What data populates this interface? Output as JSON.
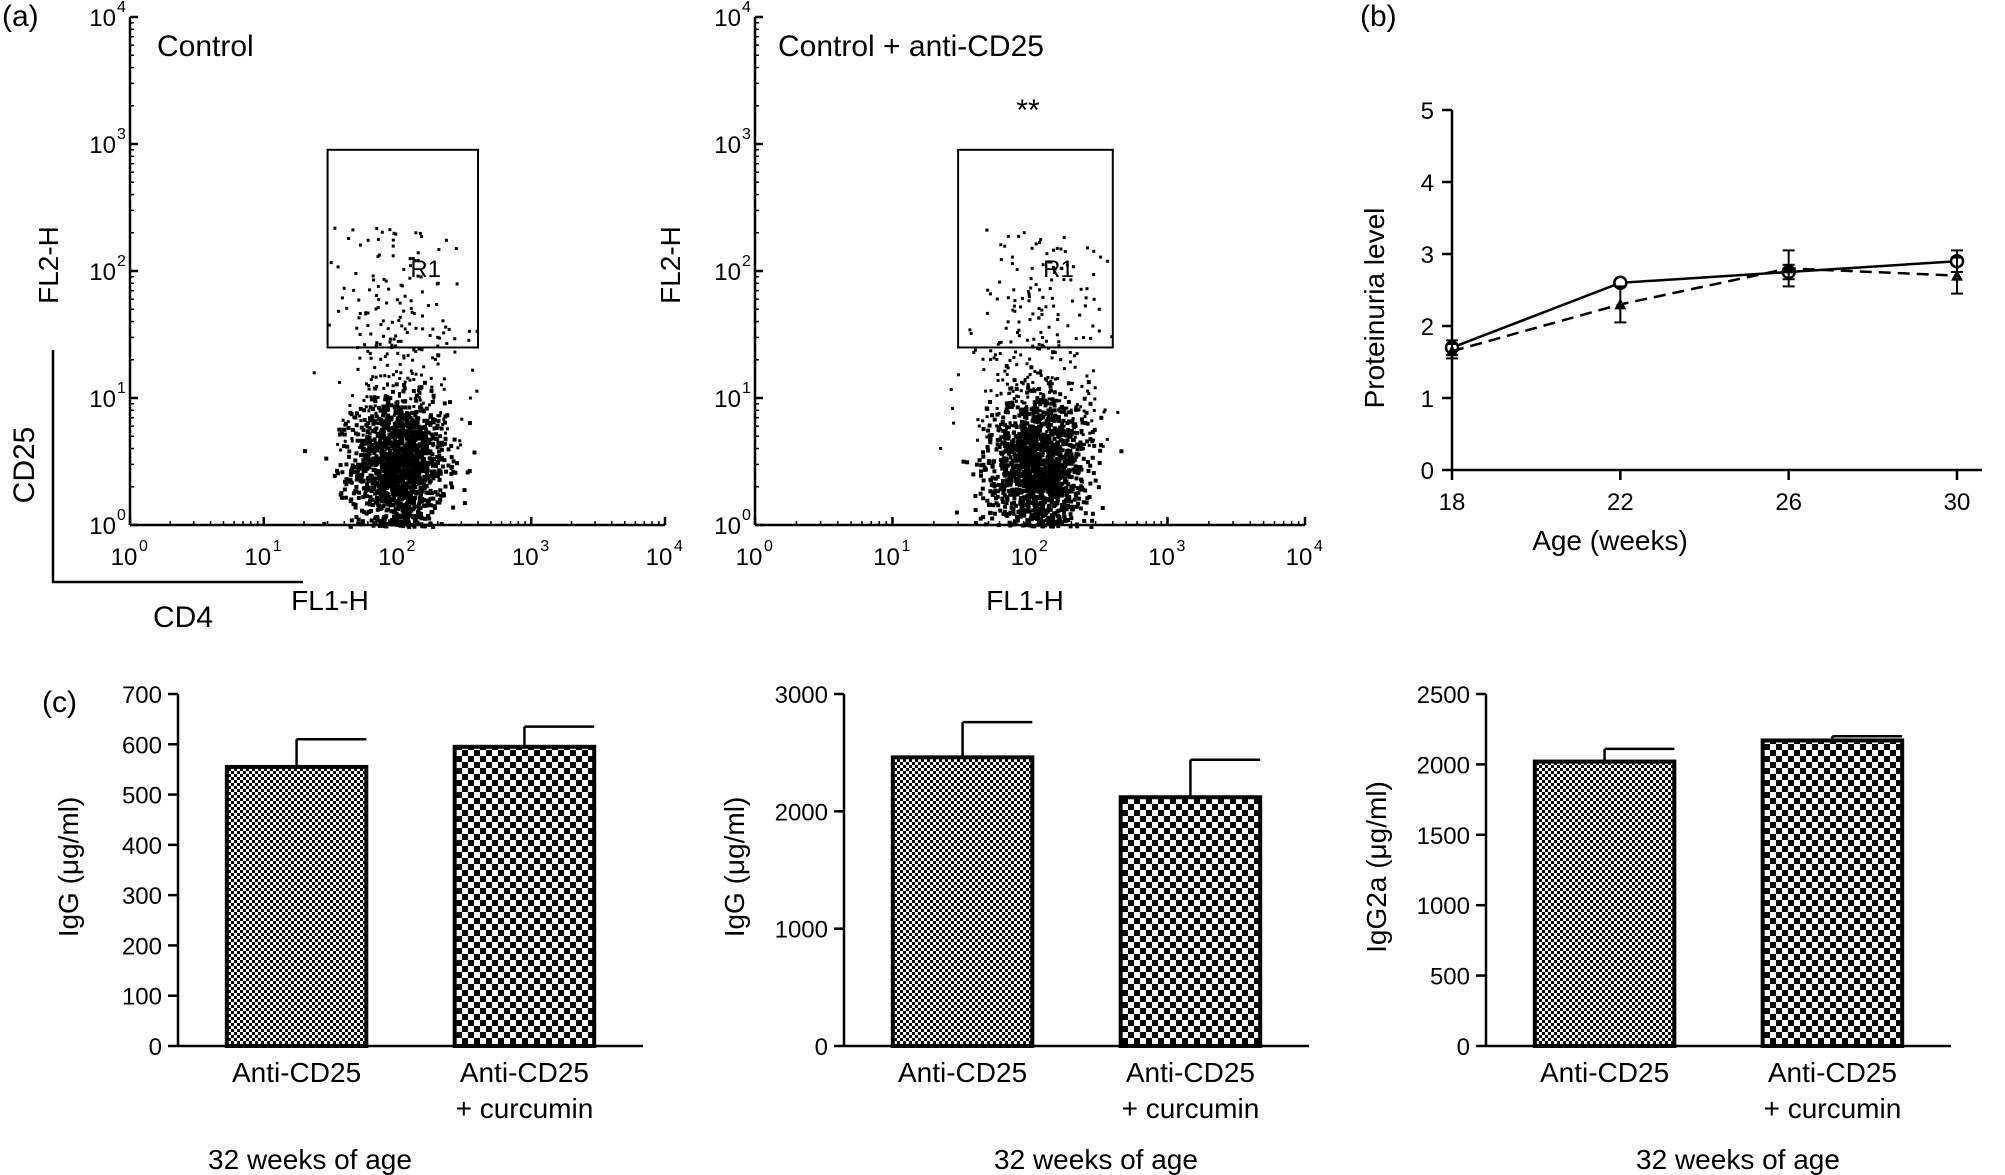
{
  "panel_labels": {
    "a": "(a)",
    "b": "(b)",
    "c": "(c)"
  },
  "chart_data": [
    {
      "id": "a1",
      "type": "scatter",
      "title": "Control",
      "xlabel": "FL1-H",
      "ylabel": "FL2-H",
      "scale": "log",
      "xlim": [
        1,
        10000
      ],
      "ylim": [
        1,
        10000
      ],
      "x_ticks": [
        "10",
        "10",
        "10",
        "10",
        "10"
      ],
      "x_tick_exps": [
        "0",
        "1",
        "2",
        "3",
        "4"
      ],
      "y_ticks": [
        "10",
        "10",
        "10",
        "10",
        "10"
      ],
      "y_tick_exps": [
        "0",
        "1",
        "2",
        "3",
        "4"
      ],
      "gate": {
        "label": "R1",
        "x_range": [
          30,
          400
        ],
        "y_range": [
          25,
          900
        ]
      },
      "cluster": {
        "x_center": 100,
        "y_center": 3,
        "x_spread_decades": 0.25,
        "y_spread_decades": 0.3
      },
      "side_axes": {
        "x": "CD4",
        "y": "CD25"
      }
    },
    {
      "id": "a2",
      "type": "scatter",
      "title": "Control + anti-CD25",
      "annotation": "**",
      "xlabel": "FL1-H",
      "ylabel": "FL2-H",
      "scale": "log",
      "xlim": [
        1,
        10000
      ],
      "ylim": [
        1,
        10000
      ],
      "x_ticks": [
        "10",
        "10",
        "10",
        "10",
        "10"
      ],
      "x_tick_exps": [
        "0",
        "1",
        "2",
        "3",
        "4"
      ],
      "y_ticks": [
        "10",
        "10",
        "10",
        "10",
        "10"
      ],
      "y_tick_exps": [
        "0",
        "1",
        "2",
        "3",
        "4"
      ],
      "gate": {
        "label": "R1",
        "x_range": [
          30,
          400
        ],
        "y_range": [
          25,
          900
        ]
      },
      "cluster": {
        "x_center": 110,
        "y_center": 3,
        "x_spread_decades": 0.25,
        "y_spread_decades": 0.3
      }
    },
    {
      "id": "b",
      "type": "line",
      "xlabel": "Age (weeks)",
      "ylabel": "Proteinuria level",
      "x": [
        18,
        22,
        26,
        30
      ],
      "xlim": [
        18,
        30
      ],
      "ylim": [
        0,
        5
      ],
      "x_ticks": [
        18,
        22,
        26,
        30
      ],
      "y_ticks": [
        0,
        1,
        2,
        3,
        4,
        5
      ],
      "series": [
        {
          "name": "solid-circles",
          "style": "solid",
          "marker": "circle",
          "values": [
            1.7,
            2.6,
            2.75,
            2.9
          ],
          "errors": [
            0.1,
            0.0,
            0.1,
            0.15
          ]
        },
        {
          "name": "dashed-triangles",
          "style": "dashed",
          "marker": "triangle",
          "values": [
            1.65,
            2.3,
            2.8,
            2.7
          ],
          "errors": [
            0.1,
            0.25,
            0.25,
            0.25
          ]
        }
      ]
    },
    {
      "id": "c1",
      "type": "bar",
      "categories": [
        "Anti-CD25",
        "+ curcumin"
      ],
      "category_lines": [
        [
          "Anti-CD25"
        ],
        [
          "Anti-CD25",
          "+ curcumin"
        ]
      ],
      "values": [
        555,
        595
      ],
      "errors": [
        55,
        40
      ],
      "ylabel": "IgG (μg/ml)",
      "xlabel": "32 weeks of age",
      "ylim": [
        0,
        700
      ],
      "y_ticks": [
        0,
        100,
        200,
        300,
        400,
        500,
        600,
        700
      ]
    },
    {
      "id": "c2",
      "type": "bar",
      "categories": [
        "Anti-CD25",
        "+ curcumin"
      ],
      "category_lines": [
        [
          "Anti-CD25"
        ],
        [
          "Anti-CD25",
          "+ curcumin"
        ]
      ],
      "values": [
        2460,
        2120
      ],
      "errors": [
        300,
        320
      ],
      "ylabel": "IgG (μg/ml)",
      "xlabel": "32 weeks of age",
      "ylim": [
        0,
        3000
      ],
      "y_ticks": [
        0,
        1000,
        2000,
        3000
      ]
    },
    {
      "id": "c3",
      "type": "bar",
      "categories": [
        "Anti-CD25",
        "+ curcumin"
      ],
      "category_lines": [
        [
          "Anti-CD25"
        ],
        [
          "Anti-CD25",
          "+ curcumin"
        ]
      ],
      "values": [
        2020,
        2170
      ],
      "errors": [
        90,
        30
      ],
      "ylabel": "IgG2a (μg/ml)",
      "xlabel": "32 weeks of age",
      "ylim": [
        0,
        2500
      ],
      "y_ticks": [
        0,
        500,
        1000,
        1500,
        2000,
        2500
      ]
    }
  ]
}
